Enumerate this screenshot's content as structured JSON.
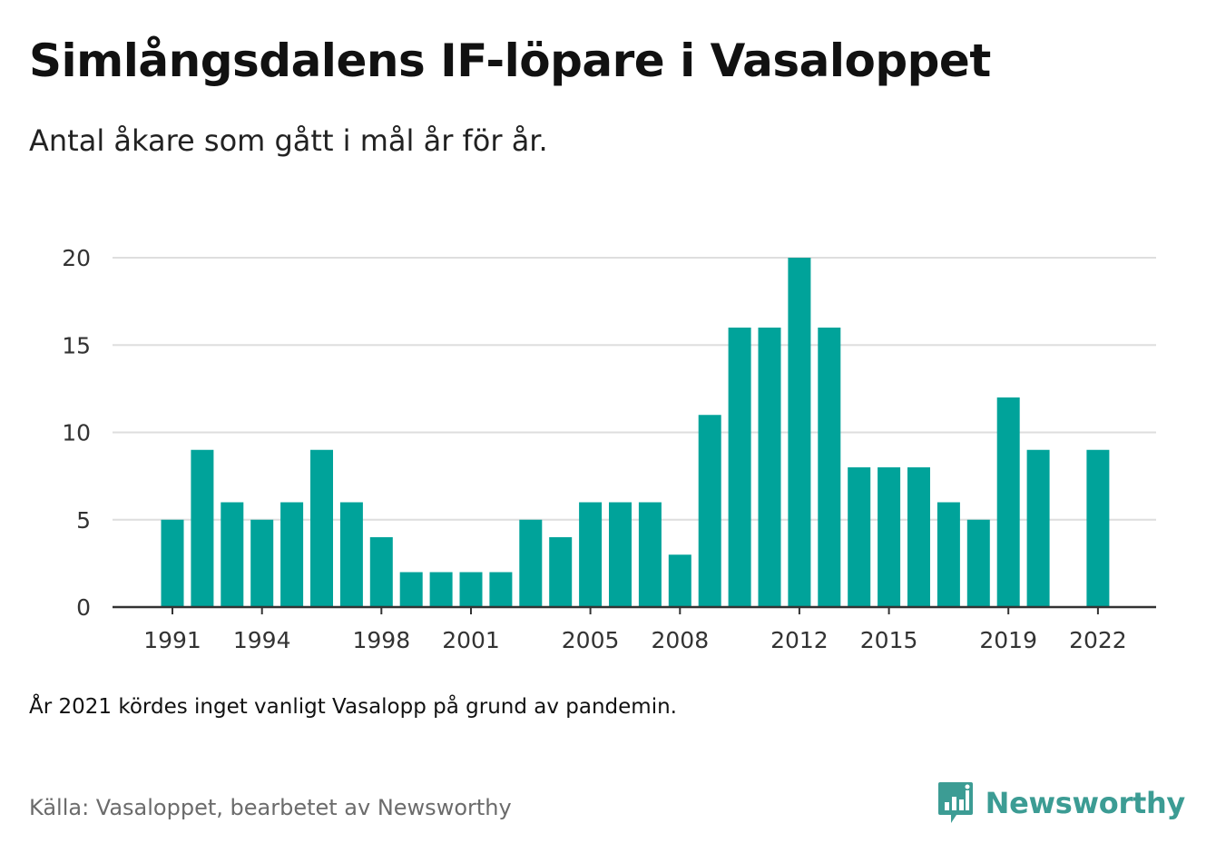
{
  "title": "Simlångsdalens IF-löpare i Vasaloppet",
  "subtitle": "Antal åkare som gått i mål år för år.",
  "note": "År 2021 kördes inget vanligt Vasalopp på grund av pandemin.",
  "source": "Källa: Vasaloppet, bearbetet av Newsworthy",
  "brand": {
    "name": "Newsworthy",
    "icon": "newsworthy-logo-icon"
  },
  "colors": {
    "bar": "#00a39a",
    "grid": "#dedede",
    "axis": "#333333",
    "brand": "#3c9c94"
  },
  "chart_data": {
    "type": "bar",
    "title": "",
    "xlabel": "",
    "ylabel": "",
    "ylim": [
      0,
      20
    ],
    "yticks": [
      0,
      5,
      10,
      15,
      20
    ],
    "grid": true,
    "legend": "none",
    "x_tick_labels": [
      "1991",
      "1994",
      "1998",
      "2001",
      "2005",
      "2008",
      "2012",
      "2015",
      "2019",
      "2022"
    ],
    "categories": [
      1991,
      1992,
      1993,
      1994,
      1995,
      1996,
      1997,
      1998,
      1999,
      2000,
      2001,
      2002,
      2003,
      2004,
      2005,
      2006,
      2007,
      2008,
      2009,
      2010,
      2011,
      2012,
      2013,
      2014,
      2015,
      2016,
      2017,
      2018,
      2019,
      2020,
      2021,
      2022
    ],
    "values": [
      5,
      9,
      6,
      5,
      6,
      9,
      6,
      4,
      2,
      2,
      2,
      2,
      5,
      4,
      6,
      6,
      6,
      3,
      11,
      16,
      16,
      20,
      16,
      8,
      8,
      8,
      6,
      5,
      12,
      9,
      null,
      9
    ]
  }
}
